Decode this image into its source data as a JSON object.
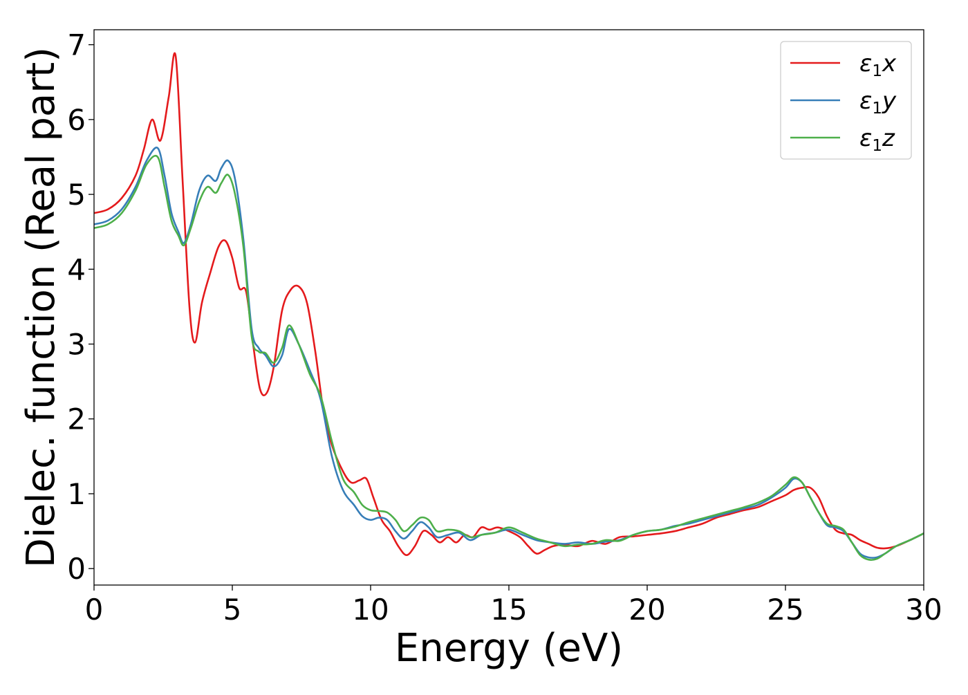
{
  "chart_data": {
    "type": "line",
    "title": "",
    "xlabel": "Energy (eV)",
    "ylabel": "Dielec. function (Real part)",
    "xlim": [
      0,
      30
    ],
    "ylim": [
      -0.22,
      7.2
    ],
    "xticks": [
      0,
      5,
      10,
      15,
      20,
      25,
      30
    ],
    "yticks": [
      0,
      1,
      2,
      3,
      4,
      5,
      6,
      7
    ],
    "grid": false,
    "legend_position": "top-right",
    "series": [
      {
        "name": "ε₁x",
        "legend_base": "ε",
        "legend_sub": "1",
        "legend_suffix": "x",
        "color": "#e41a1c",
        "x": [
          0,
          0.5,
          1.0,
          1.5,
          1.8,
          2.1,
          2.4,
          2.7,
          2.95,
          3.2,
          3.45,
          3.65,
          3.9,
          4.2,
          4.5,
          4.75,
          5.0,
          5.25,
          5.5,
          5.75,
          6.0,
          6.25,
          6.5,
          6.8,
          7.1,
          7.4,
          7.7,
          8.0,
          8.3,
          8.6,
          9.0,
          9.3,
          9.6,
          9.85,
          10.1,
          10.4,
          10.7,
          11.0,
          11.3,
          11.6,
          11.9,
          12.2,
          12.5,
          12.8,
          13.1,
          13.4,
          13.7,
          14.0,
          14.3,
          14.6,
          15.0,
          15.4,
          15.7,
          16.0,
          16.3,
          16.6,
          17.0,
          17.5,
          18.0,
          18.5,
          19.0,
          19.5,
          20.0,
          20.5,
          21.0,
          21.5,
          22.0,
          22.5,
          23.0,
          23.5,
          24.0,
          24.5,
          25.0,
          25.3,
          25.6,
          25.9,
          26.2,
          26.5,
          26.8,
          27.1,
          27.4,
          27.7,
          28.0,
          28.3,
          28.6,
          29.0,
          29.5,
          30.0
        ],
        "y": [
          4.75,
          4.8,
          4.95,
          5.25,
          5.6,
          6.0,
          5.72,
          6.3,
          6.85,
          5.2,
          3.5,
          3.02,
          3.55,
          3.95,
          4.3,
          4.38,
          4.15,
          3.75,
          3.7,
          3.0,
          2.4,
          2.35,
          2.7,
          3.45,
          3.72,
          3.77,
          3.55,
          2.9,
          2.1,
          1.65,
          1.3,
          1.15,
          1.18,
          1.2,
          0.95,
          0.65,
          0.5,
          0.3,
          0.18,
          0.3,
          0.5,
          0.45,
          0.35,
          0.42,
          0.35,
          0.45,
          0.42,
          0.55,
          0.52,
          0.55,
          0.5,
          0.42,
          0.3,
          0.2,
          0.25,
          0.3,
          0.32,
          0.3,
          0.37,
          0.33,
          0.42,
          0.43,
          0.45,
          0.47,
          0.5,
          0.55,
          0.6,
          0.68,
          0.73,
          0.78,
          0.82,
          0.9,
          0.98,
          1.05,
          1.08,
          1.08,
          0.95,
          0.7,
          0.52,
          0.47,
          0.45,
          0.38,
          0.33,
          0.28,
          0.27,
          0.3,
          0.38,
          0.47
        ]
      },
      {
        "name": "ε₁y",
        "legend_base": "ε",
        "legend_sub": "1",
        "legend_suffix": "y",
        "color": "#377eb8",
        "x": [
          0,
          0.5,
          1.0,
          1.5,
          1.9,
          2.3,
          2.55,
          2.8,
          3.05,
          3.25,
          3.5,
          3.8,
          4.1,
          4.4,
          4.6,
          4.85,
          5.1,
          5.4,
          5.7,
          5.95,
          6.2,
          6.5,
          6.8,
          7.05,
          7.4,
          7.8,
          8.2,
          8.6,
          9.0,
          9.4,
          9.7,
          10.0,
          10.3,
          10.6,
          10.9,
          11.2,
          11.5,
          11.8,
          12.1,
          12.4,
          12.8,
          13.2,
          13.6,
          14.0,
          14.5,
          15.0,
          15.5,
          16.0,
          16.5,
          17.0,
          17.5,
          18.0,
          18.5,
          19.0,
          19.5,
          20.0,
          20.5,
          21.0,
          21.5,
          22.0,
          22.5,
          23.0,
          23.5,
          24.0,
          24.5,
          25.0,
          25.3,
          25.6,
          25.9,
          26.2,
          26.5,
          26.8,
          27.1,
          27.4,
          27.7,
          28.0,
          28.3,
          28.6,
          29.0,
          29.5,
          30.0
        ],
        "y": [
          4.6,
          4.65,
          4.8,
          5.1,
          5.45,
          5.62,
          5.25,
          4.75,
          4.5,
          4.35,
          4.6,
          5.05,
          5.25,
          5.18,
          5.35,
          5.45,
          5.2,
          4.4,
          3.2,
          2.95,
          2.85,
          2.7,
          2.85,
          3.2,
          3.0,
          2.65,
          2.25,
          1.5,
          1.05,
          0.85,
          0.7,
          0.65,
          0.68,
          0.65,
          0.5,
          0.4,
          0.5,
          0.62,
          0.55,
          0.42,
          0.45,
          0.48,
          0.38,
          0.45,
          0.48,
          0.52,
          0.45,
          0.38,
          0.35,
          0.33,
          0.35,
          0.33,
          0.36,
          0.38,
          0.45,
          0.5,
          0.52,
          0.57,
          0.6,
          0.65,
          0.7,
          0.75,
          0.8,
          0.85,
          0.95,
          1.08,
          1.2,
          1.15,
          0.95,
          0.75,
          0.58,
          0.55,
          0.5,
          0.35,
          0.2,
          0.15,
          0.15,
          0.2,
          0.3,
          0.38,
          0.47
        ]
      },
      {
        "name": "ε₁z",
        "legend_base": "ε",
        "legend_sub": "1",
        "legend_suffix": "z",
        "color": "#4daf4a",
        "x": [
          0,
          0.5,
          1.0,
          1.5,
          1.9,
          2.3,
          2.55,
          2.8,
          3.05,
          3.25,
          3.5,
          3.8,
          4.1,
          4.4,
          4.6,
          4.85,
          5.1,
          5.4,
          5.7,
          5.95,
          6.2,
          6.5,
          6.8,
          7.05,
          7.4,
          7.8,
          8.2,
          8.6,
          9.0,
          9.4,
          9.7,
          10.0,
          10.3,
          10.6,
          10.9,
          11.2,
          11.5,
          11.8,
          12.1,
          12.4,
          12.8,
          13.2,
          13.6,
          14.0,
          14.5,
          15.0,
          15.5,
          16.0,
          16.5,
          17.0,
          17.5,
          18.0,
          18.5,
          19.0,
          19.5,
          20.0,
          20.5,
          21.0,
          21.5,
          22.0,
          22.5,
          23.0,
          23.5,
          24.0,
          24.5,
          25.0,
          25.3,
          25.6,
          25.9,
          26.2,
          26.5,
          26.8,
          27.1,
          27.4,
          27.7,
          28.0,
          28.3,
          28.6,
          29.0,
          29.5,
          30.0
        ],
        "y": [
          4.55,
          4.6,
          4.75,
          5.05,
          5.4,
          5.5,
          5.1,
          4.65,
          4.45,
          4.32,
          4.55,
          4.9,
          5.1,
          5.02,
          5.15,
          5.26,
          5.0,
          4.3,
          3.1,
          2.9,
          2.88,
          2.75,
          2.95,
          3.25,
          3.0,
          2.6,
          2.3,
          1.7,
          1.2,
          1.02,
          0.85,
          0.78,
          0.77,
          0.75,
          0.65,
          0.5,
          0.58,
          0.68,
          0.65,
          0.5,
          0.52,
          0.5,
          0.42,
          0.45,
          0.48,
          0.55,
          0.48,
          0.4,
          0.35,
          0.3,
          0.32,
          0.33,
          0.38,
          0.37,
          0.45,
          0.5,
          0.52,
          0.56,
          0.62,
          0.67,
          0.72,
          0.77,
          0.82,
          0.88,
          0.97,
          1.12,
          1.22,
          1.15,
          0.95,
          0.75,
          0.6,
          0.57,
          0.52,
          0.35,
          0.18,
          0.12,
          0.13,
          0.2,
          0.3,
          0.38,
          0.47
        ]
      }
    ]
  }
}
